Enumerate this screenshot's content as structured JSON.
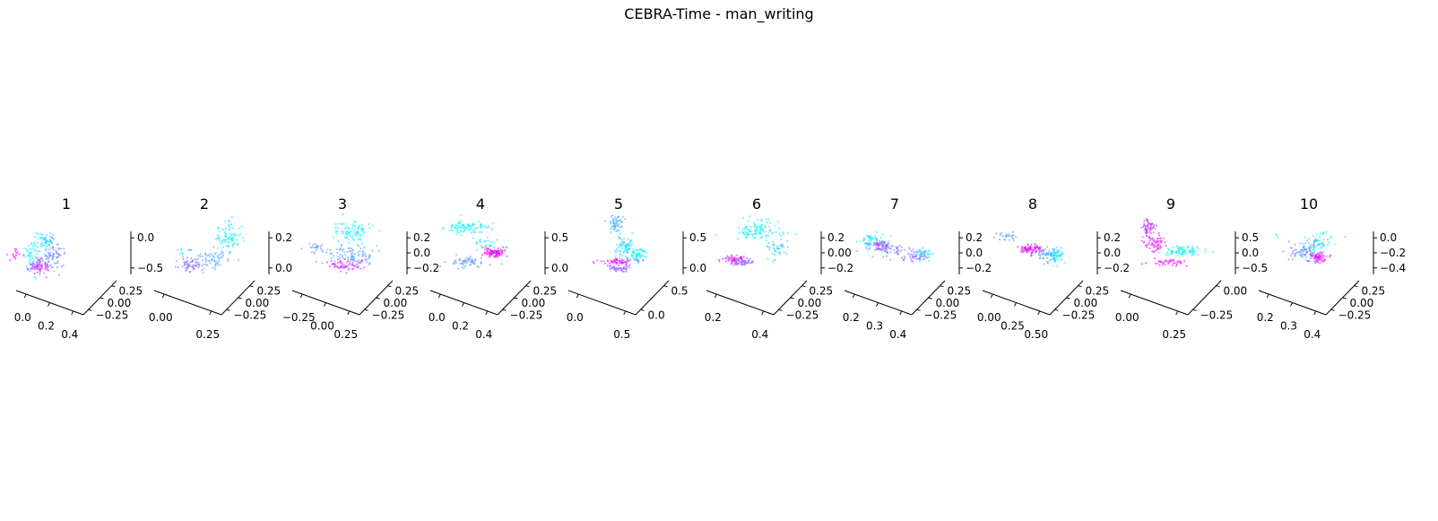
{
  "figure": {
    "title": "CEBRA-Time - man_writing"
  },
  "colors": {
    "low": "#00ffff",
    "high": "#ff00ff",
    "axis": "#000000"
  },
  "chart_data": [
    {
      "type": "scatter",
      "title": "1",
      "x_ticks": [
        "0.0",
        "0.2",
        "0.4"
      ],
      "y_ticks": [
        "0.25",
        "0.00",
        "−0.25"
      ],
      "z_ticks": [
        "0.0",
        "−0.5"
      ],
      "clusters": [
        {
          "x": 0.12,
          "y": 0.45,
          "z": 0.3,
          "sx": 0.05,
          "sy": 0.2,
          "sz": 0.2,
          "c": 0.0,
          "n": 60
        },
        {
          "x": 0.22,
          "y": 0.75,
          "z": 0.55,
          "sx": 0.06,
          "sy": 0.1,
          "sz": 0.1,
          "c": 0.15,
          "n": 55
        },
        {
          "x": 0.32,
          "y": 0.55,
          "z": 0.3,
          "sx": 0.06,
          "sy": 0.18,
          "sz": 0.15,
          "c": 0.45,
          "n": 70
        },
        {
          "x": 0.22,
          "y": 0.35,
          "z": 0.12,
          "sx": 0.07,
          "sy": 0.1,
          "sz": 0.06,
          "c": 0.85,
          "n": 60
        },
        {
          "x": -0.05,
          "y": 0.15,
          "z": 0.4,
          "sx": 0.03,
          "sy": 0.05,
          "sz": 0.05,
          "c": 1.0,
          "n": 15
        }
      ]
    },
    {
      "type": "scatter",
      "title": "2",
      "x_ticks": [
        "0.00",
        "0.25"
      ],
      "y_ticks": [
        "0.25",
        "0.00",
        "−0.25"
      ],
      "z_ticks": [
        "0.2",
        "0.0"
      ],
      "clusters": [
        {
          "x": 0.75,
          "y": 0.55,
          "z": 0.7,
          "sx": 0.08,
          "sy": 0.15,
          "sz": 0.15,
          "c": 0.05,
          "n": 80
        },
        {
          "x": 0.55,
          "y": 0.4,
          "z": 0.25,
          "sx": 0.1,
          "sy": 0.12,
          "sz": 0.1,
          "c": 0.35,
          "n": 70
        },
        {
          "x": 0.35,
          "y": 0.3,
          "z": 0.15,
          "sx": 0.06,
          "sy": 0.08,
          "sz": 0.06,
          "c": 0.6,
          "n": 50
        },
        {
          "x": 0.25,
          "y": 0.2,
          "z": 0.45,
          "sx": 0.03,
          "sy": 0.04,
          "sz": 0.04,
          "c": 0.1,
          "n": 6
        }
      ]
    },
    {
      "type": "scatter",
      "title": "3",
      "x_ticks": [
        "−0.25",
        "0.00",
        "0.25"
      ],
      "y_ticks": [
        "0.25",
        "0.00",
        "−0.25"
      ],
      "z_ticks": [
        "0.2",
        "0.0",
        "−0.2"
      ],
      "clusters": [
        {
          "x": 0.55,
          "y": 0.8,
          "z": 0.75,
          "sx": 0.1,
          "sy": 0.1,
          "sz": 0.1,
          "c": 0.05,
          "n": 80
        },
        {
          "x": 0.6,
          "y": 0.4,
          "z": 0.35,
          "sx": 0.15,
          "sy": 0.15,
          "sz": 0.12,
          "c": 0.35,
          "n": 100
        },
        {
          "x": 0.55,
          "y": 0.3,
          "z": 0.15,
          "sx": 0.1,
          "sy": 0.08,
          "sz": 0.06,
          "c": 0.85,
          "n": 60
        },
        {
          "x": 0.2,
          "y": 0.45,
          "z": 0.5,
          "sx": 0.05,
          "sy": 0.06,
          "sz": 0.06,
          "c": 0.4,
          "n": 20
        }
      ]
    },
    {
      "type": "scatter",
      "title": "4",
      "x_ticks": [
        "0.0",
        "0.2",
        "0.4"
      ],
      "y_ticks": [
        "0.25",
        "0.00",
        "−0.25"
      ],
      "z_ticks": [
        "0.5",
        "0.0"
      ],
      "clusters": [
        {
          "x": 0.3,
          "y": 0.8,
          "z": 0.85,
          "sx": 0.12,
          "sy": 0.08,
          "sz": 0.06,
          "c": 0.05,
          "n": 80
        },
        {
          "x": 0.35,
          "y": 0.4,
          "z": 0.2,
          "sx": 0.1,
          "sy": 0.08,
          "sz": 0.06,
          "c": 0.4,
          "n": 60
        },
        {
          "x": 0.65,
          "y": 0.45,
          "z": 0.4,
          "sx": 0.06,
          "sy": 0.05,
          "sz": 0.05,
          "c": 0.95,
          "n": 100
        },
        {
          "x": 0.55,
          "y": 0.6,
          "z": 0.55,
          "sx": 0.08,
          "sy": 0.1,
          "sz": 0.1,
          "c": 0.1,
          "n": 25
        }
      ]
    },
    {
      "type": "scatter",
      "title": "5",
      "x_ticks": [
        "0.0",
        "0.5"
      ],
      "y_ticks": [
        "0.5",
        "0.0"
      ],
      "z_ticks": [
        "0.5",
        "0.0"
      ],
      "clusters": [
        {
          "x": 0.4,
          "y": 0.85,
          "z": 0.9,
          "sx": 0.04,
          "sy": 0.08,
          "sz": 0.1,
          "c": 0.3,
          "n": 60
        },
        {
          "x": 0.55,
          "y": 0.5,
          "z": 0.5,
          "sx": 0.05,
          "sy": 0.1,
          "sz": 0.1,
          "c": 0.15,
          "n": 70
        },
        {
          "x": 0.7,
          "y": 0.4,
          "z": 0.35,
          "sx": 0.05,
          "sy": 0.08,
          "sz": 0.08,
          "c": 0.05,
          "n": 55
        },
        {
          "x": 0.5,
          "y": 0.3,
          "z": 0.22,
          "sx": 0.1,
          "sy": 0.06,
          "sz": 0.04,
          "c": 0.9,
          "n": 60
        },
        {
          "x": 0.55,
          "y": 0.2,
          "z": 0.1,
          "sx": 0.06,
          "sy": 0.05,
          "sz": 0.04,
          "c": 0.6,
          "n": 40
        }
      ]
    },
    {
      "type": "scatter",
      "title": "6",
      "x_ticks": [
        "0.2",
        "0.4"
      ],
      "y_ticks": [
        "0.25",
        "0.00",
        "−0.25"
      ],
      "z_ticks": [
        "0.2",
        "0.00",
        "−0.2"
      ],
      "clusters": [
        {
          "x": 0.45,
          "y": 0.7,
          "z": 0.8,
          "sx": 0.15,
          "sy": 0.1,
          "sz": 0.1,
          "c": 0.05,
          "n": 100
        },
        {
          "x": 0.25,
          "y": 0.4,
          "z": 0.25,
          "sx": 0.08,
          "sy": 0.05,
          "sz": 0.04,
          "c": 0.9,
          "n": 60
        },
        {
          "x": 0.35,
          "y": 0.35,
          "z": 0.2,
          "sx": 0.06,
          "sy": 0.05,
          "sz": 0.04,
          "c": 0.5,
          "n": 40
        },
        {
          "x": 0.7,
          "y": 0.55,
          "z": 0.45,
          "sx": 0.06,
          "sy": 0.1,
          "sz": 0.12,
          "c": 0.2,
          "n": 40
        }
      ]
    },
    {
      "type": "scatter",
      "title": "7",
      "x_ticks": [
        "0.2",
        "0.3",
        "0.4"
      ],
      "y_ticks": [
        "0.25",
        "0.00",
        "−0.25"
      ],
      "z_ticks": [
        "0.2",
        "0.0",
        "−0.2"
      ],
      "clusters": [
        {
          "x": 0.25,
          "y": 0.55,
          "z": 0.6,
          "sx": 0.1,
          "sy": 0.08,
          "sz": 0.08,
          "c": 0.1,
          "n": 70
        },
        {
          "x": 0.4,
          "y": 0.5,
          "z": 0.45,
          "sx": 0.12,
          "sy": 0.06,
          "sz": 0.06,
          "c": 0.45,
          "n": 60
        },
        {
          "x": 0.3,
          "y": 0.55,
          "z": 0.52,
          "sx": 0.08,
          "sy": 0.05,
          "sz": 0.05,
          "c": 0.85,
          "n": 30
        },
        {
          "x": 0.7,
          "y": 0.5,
          "z": 0.3,
          "sx": 0.08,
          "sy": 0.06,
          "sz": 0.06,
          "c": 0.6,
          "n": 50
        },
        {
          "x": 0.8,
          "y": 0.5,
          "z": 0.35,
          "sx": 0.05,
          "sy": 0.05,
          "sz": 0.06,
          "c": 0.1,
          "n": 30
        }
      ]
    },
    {
      "type": "scatter",
      "title": "8",
      "x_ticks": [
        "0.00",
        "0.25",
        "0.50"
      ],
      "y_ticks": [
        "0.25",
        "0.00",
        "−0.25"
      ],
      "z_ticks": [
        "0.2",
        "0.0",
        "−0.2"
      ],
      "clusters": [
        {
          "x": 0.2,
          "y": 0.65,
          "z": 0.7,
          "sx": 0.06,
          "sy": 0.05,
          "sz": 0.05,
          "c": 0.4,
          "n": 25
        },
        {
          "x": 0.45,
          "y": 0.5,
          "z": 0.45,
          "sx": 0.06,
          "sy": 0.05,
          "sz": 0.05,
          "c": 0.9,
          "n": 80
        },
        {
          "x": 0.65,
          "y": 0.45,
          "z": 0.35,
          "sx": 0.06,
          "sy": 0.08,
          "sz": 0.08,
          "c": 0.35,
          "n": 60
        },
        {
          "x": 0.75,
          "y": 0.45,
          "z": 0.3,
          "sx": 0.04,
          "sy": 0.06,
          "sz": 0.08,
          "c": 0.05,
          "n": 50
        }
      ]
    },
    {
      "type": "scatter",
      "title": "9",
      "x_ticks": [
        "0.00",
        "0.25"
      ],
      "y_ticks": [
        "0.00",
        "−0.25"
      ],
      "z_ticks": [
        "0.5",
        "0.0",
        "−0.5"
      ],
      "clusters": [
        {
          "x": 0.2,
          "y": 0.75,
          "z": 0.85,
          "sx": 0.04,
          "sy": 0.08,
          "sz": 0.1,
          "c": 0.75,
          "n": 60
        },
        {
          "x": 0.3,
          "y": 0.5,
          "z": 0.55,
          "sx": 0.06,
          "sy": 0.1,
          "sz": 0.08,
          "c": 0.9,
          "n": 60
        },
        {
          "x": 0.65,
          "y": 0.45,
          "z": 0.42,
          "sx": 0.1,
          "sy": 0.06,
          "sz": 0.05,
          "c": 0.05,
          "n": 80
        },
        {
          "x": 0.5,
          "y": 0.3,
          "z": 0.2,
          "sx": 0.1,
          "sy": 0.05,
          "sz": 0.04,
          "c": 1.0,
          "n": 40
        }
      ]
    },
    {
      "type": "scatter",
      "title": "10",
      "x_ticks": [
        "0.2",
        "0.3",
        "0.4"
      ],
      "y_ticks": [
        "0.25",
        "0.00",
        "−0.25"
      ],
      "z_ticks": [
        "0.0",
        "−0.2",
        "−0.4"
      ],
      "clusters": [
        {
          "x": 0.55,
          "y": 0.5,
          "z": 0.55,
          "sx": 0.1,
          "sy": 0.1,
          "sz": 0.12,
          "c": 0.1,
          "n": 70
        },
        {
          "x": 0.45,
          "y": 0.45,
          "z": 0.4,
          "sx": 0.1,
          "sy": 0.08,
          "sz": 0.08,
          "c": 0.45,
          "n": 70
        },
        {
          "x": 0.6,
          "y": 0.4,
          "z": 0.3,
          "sx": 0.05,
          "sy": 0.05,
          "sz": 0.06,
          "c": 0.9,
          "n": 60
        },
        {
          "x": 0.1,
          "y": 0.6,
          "z": 0.7,
          "sx": 0.02,
          "sy": 0.02,
          "sz": 0.02,
          "c": 0.05,
          "n": 3
        }
      ]
    }
  ]
}
